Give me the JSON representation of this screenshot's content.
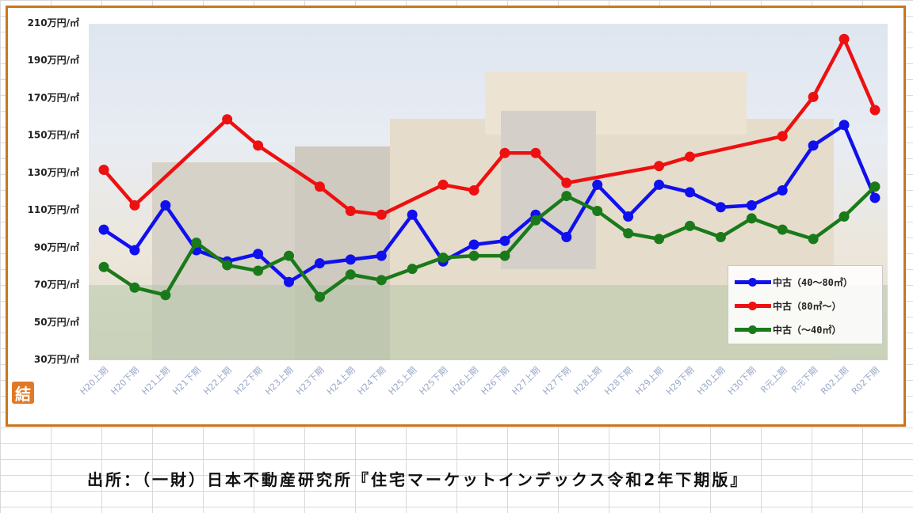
{
  "chart_data": {
    "type": "line",
    "categories": [
      "H20上期",
      "H20下期",
      "H21上期",
      "H21下期",
      "H22上期",
      "H22下期",
      "H23上期",
      "H23下期",
      "H24上期",
      "H24下期",
      "H25上期",
      "H25下期",
      "H26上期",
      "H26下期",
      "H27上期",
      "H27下期",
      "H28上期",
      "H28下期",
      "H29上期",
      "H29下期",
      "H30上期",
      "H30下期",
      "R元上期",
      "R元下期",
      "R02上期",
      "R02下期"
    ],
    "y_tick_labels": [
      "210万円/㎡",
      "190万円/㎡",
      "170万円/㎡",
      "150万円/㎡",
      "130万円/㎡",
      "110万円/㎡",
      "90万円/㎡",
      "70万円/㎡",
      "50万円/㎡",
      "30万円/㎡"
    ],
    "y_ticks": [
      210,
      190,
      170,
      150,
      130,
      110,
      90,
      70,
      50,
      30
    ],
    "ylim": [
      30,
      210
    ],
    "legend_position": "bottom-right",
    "series": [
      {
        "name": "中古（40～80㎡）",
        "color": "#1010ee",
        "values": [
          99,
          88,
          112,
          88,
          82,
          86,
          71,
          81,
          83,
          85,
          107,
          82,
          91,
          93,
          107,
          95,
          123,
          106,
          123,
          119,
          111,
          112,
          120,
          144,
          155,
          116
        ]
      },
      {
        "name": "中古（80㎡～）",
        "color": "#ee1010",
        "values": [
          131,
          112,
          null,
          null,
          158,
          144,
          null,
          122,
          109,
          107,
          null,
          123,
          120,
          140,
          140,
          124,
          null,
          null,
          133,
          138,
          null,
          null,
          149,
          170,
          201,
          163
        ]
      },
      {
        "name": "中古（～40㎡）",
        "color": "#1a7a1a",
        "values": [
          79,
          68,
          64,
          92,
          80,
          77,
          85,
          63,
          75,
          72,
          78,
          84,
          85,
          85,
          104,
          117,
          109,
          97,
          94,
          101,
          95,
          105,
          99,
          94,
          106,
          122
        ]
      }
    ]
  },
  "logo_text": "結",
  "source": "出所：（一財）日本不動産研究所『住宅マーケットインデックス令和2年下期版』"
}
